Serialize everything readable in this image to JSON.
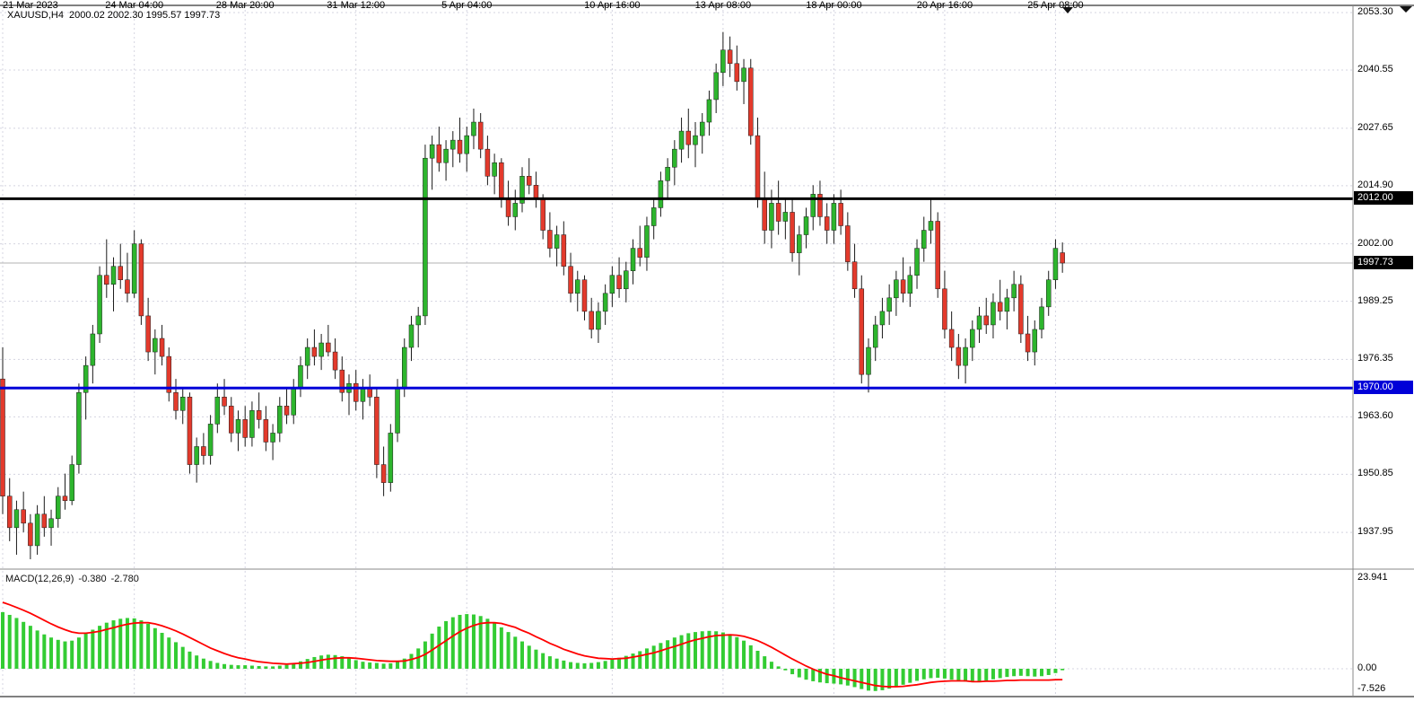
{
  "header": {
    "symbol_period": "XAUUSD,H4",
    "ohlc_values": "2000.02 2002.30 1995.57 1997.73"
  },
  "price_axis": {
    "ticks": [
      {
        "label": "2053.30",
        "value": 2053.3
      },
      {
        "label": "2040.55",
        "value": 2040.55
      },
      {
        "label": "2027.65",
        "value": 2027.65
      },
      {
        "label": "2014.90",
        "value": 2014.9
      },
      {
        "label": "2002.00",
        "value": 2002.0
      },
      {
        "label": "1989.25",
        "value": 1989.25
      },
      {
        "label": "1976.35",
        "value": 1976.35
      },
      {
        "label": "1963.60",
        "value": 1963.6
      },
      {
        "label": "1950.85",
        "value": 1950.85
      },
      {
        "label": "1937.95",
        "value": 1937.95
      }
    ],
    "current": {
      "label": "1997.73",
      "value": 1997.73,
      "badge_bg": "#000000"
    }
  },
  "hlines": [
    {
      "label": "2012.00",
      "value": 2012.0,
      "color": "#000000",
      "badge_bg": "#000000"
    },
    {
      "label": "1970.00",
      "value": 1970.0,
      "color": "#0000d8",
      "badge_bg": "#0000d8"
    }
  ],
  "time_axis": {
    "ticks": [
      {
        "label": "21 Mar 2023",
        "index": 0
      },
      {
        "label": "24 Mar 04:00",
        "index": 19
      },
      {
        "label": "28 Mar 20:00",
        "index": 35
      },
      {
        "label": "31 Mar 12:00",
        "index": 51
      },
      {
        "label": "5 Apr 04:00",
        "index": 67
      },
      {
        "label": "10 Apr 16:00",
        "index": 88
      },
      {
        "label": "13 Apr 08:00",
        "index": 104
      },
      {
        "label": "18 Apr 00:00",
        "index": 120
      },
      {
        "label": "20 Apr 16:00",
        "index": 136
      },
      {
        "label": "25 Apr 08:00",
        "index": 152
      }
    ]
  },
  "macd": {
    "label": "MACD(12,26,9)",
    "value_main": "-0.380",
    "value_signal": "-2.780",
    "axis": [
      {
        "label": "23.941",
        "value": 23.941
      },
      {
        "label": "0.00",
        "value": 0.0
      },
      {
        "label": "-7.526",
        "value": -7.526
      }
    ]
  },
  "colors": {
    "bull": "#2db52d",
    "bear": "#e33a2c",
    "wick": "#1a1a1a",
    "grid": "#d4d4e0",
    "bid_line": "#b3b3b3",
    "macd_hist": "#33cc33",
    "macd_signal": "#ff0000",
    "frame": "#000000",
    "separator": "#888888"
  },
  "chart_data": {
    "type": "candlestick",
    "symbol": "XAUUSD",
    "timeframe": "H4",
    "title": "XAUUSD,H4 2000.02 2002.30 1995.57 1997.73",
    "price_axis_range": [
      1931,
      2056
    ],
    "grid": true,
    "ohlc_current": {
      "open": 2000.02,
      "high": 2002.3,
      "low": 1995.57,
      "close": 1997.73
    },
    "horizontal_lines": [
      2012.0,
      1970.0
    ],
    "current_price": 1997.73,
    "candles": [
      [
        1972,
        1979,
        1942,
        1946
      ],
      [
        1946,
        1950,
        1936,
        1939
      ],
      [
        1939,
        1945,
        1933,
        1943
      ],
      [
        1943,
        1947,
        1938,
        1940
      ],
      [
        1940,
        1942,
        1932,
        1935
      ],
      [
        1935,
        1944,
        1933,
        1942
      ],
      [
        1942,
        1946,
        1937,
        1939
      ],
      [
        1939,
        1943,
        1935,
        1941
      ],
      [
        1941,
        1948,
        1939,
        1946
      ],
      [
        1946,
        1951,
        1943,
        1945
      ],
      [
        1945,
        1955,
        1944,
        1953
      ],
      [
        1953,
        1971,
        1951,
        1969
      ],
      [
        1969,
        1977,
        1963,
        1975
      ],
      [
        1975,
        1984,
        1971,
        1982
      ],
      [
        1982,
        1997,
        1980,
        1995
      ],
      [
        1995,
        2003,
        1990,
        1993
      ],
      [
        1993,
        1999,
        1987,
        1997
      ],
      [
        1997,
        2002,
        1992,
        1994
      ],
      [
        1994,
        2000,
        1989,
        1991
      ],
      [
        1991,
        2005,
        1990,
        2002
      ],
      [
        2002,
        2003,
        1984,
        1986
      ],
      [
        1986,
        1990,
        1976,
        1978
      ],
      [
        1978,
        1983,
        1973,
        1981
      ],
      [
        1981,
        1984,
        1975,
        1977
      ],
      [
        1977,
        1979,
        1967,
        1969
      ],
      [
        1969,
        1972,
        1963,
        1965
      ],
      [
        1965,
        1970,
        1962,
        1968
      ],
      [
        1968,
        1969,
        1951,
        1953
      ],
      [
        1953,
        1959,
        1949,
        1957
      ],
      [
        1957,
        1960,
        1953,
        1955
      ],
      [
        1955,
        1964,
        1953,
        1962
      ],
      [
        1962,
        1971,
        1960,
        1968
      ],
      [
        1968,
        1972,
        1964,
        1966
      ],
      [
        1966,
        1968,
        1958,
        1960
      ],
      [
        1960,
        1965,
        1956,
        1963
      ],
      [
        1963,
        1966,
        1957,
        1959
      ],
      [
        1959,
        1967,
        1957,
        1965
      ],
      [
        1965,
        1969,
        1961,
        1963
      ],
      [
        1963,
        1966,
        1956,
        1958
      ],
      [
        1958,
        1962,
        1954,
        1960
      ],
      [
        1960,
        1968,
        1958,
        1966
      ],
      [
        1966,
        1970,
        1962,
        1964
      ],
      [
        1964,
        1972,
        1962,
        1970
      ],
      [
        1970,
        1977,
        1968,
        1975
      ],
      [
        1975,
        1981,
        1972,
        1979
      ],
      [
        1979,
        1983,
        1975,
        1977
      ],
      [
        1977,
        1982,
        1974,
        1980
      ],
      [
        1980,
        1984,
        1977,
        1978
      ],
      [
        1978,
        1981,
        1972,
        1974
      ],
      [
        1974,
        1977,
        1967,
        1969
      ],
      [
        1969,
        1973,
        1964,
        1971
      ],
      [
        1971,
        1974,
        1965,
        1967
      ],
      [
        1967,
        1972,
        1963,
        1970
      ],
      [
        1970,
        1973,
        1966,
        1968
      ],
      [
        1968,
        1970,
        1950,
        1953
      ],
      [
        1953,
        1957,
        1946,
        1949
      ],
      [
        1949,
        1962,
        1947,
        1960
      ],
      [
        1960,
        1972,
        1958,
        1970
      ],
      [
        1970,
        1981,
        1968,
        1979
      ],
      [
        1979,
        1986,
        1976,
        1984
      ],
      [
        1984,
        1988,
        1979,
        1986
      ],
      [
        1986,
        2024,
        1984,
        2021
      ],
      [
        2021,
        2026,
        2014,
        2024
      ],
      [
        2024,
        2028,
        2018,
        2020
      ],
      [
        2020,
        2025,
        2016,
        2023
      ],
      [
        2023,
        2027,
        2019,
        2025
      ],
      [
        2025,
        2030,
        2020,
        2022
      ],
      [
        2022,
        2028,
        2018,
        2026
      ],
      [
        2026,
        2032,
        2023,
        2029
      ],
      [
        2029,
        2031,
        2021,
        2023
      ],
      [
        2023,
        2026,
        2015,
        2017
      ],
      [
        2017,
        2022,
        2013,
        2020
      ],
      [
        2020,
        2021,
        2010,
        2012
      ],
      [
        2012,
        2016,
        2006,
        2008
      ],
      [
        2008,
        2014,
        2005,
        2011
      ],
      [
        2011,
        2019,
        2009,
        2017
      ],
      [
        2017,
        2021,
        2013,
        2015
      ],
      [
        2015,
        2018,
        2010,
        2012
      ],
      [
        2012,
        2013,
        2003,
        2005
      ],
      [
        2005,
        2009,
        1999,
        2001
      ],
      [
        2001,
        2006,
        1997,
        2004
      ],
      [
        2004,
        2007,
        1995,
        1997
      ],
      [
        1997,
        2000,
        1989,
        1991
      ],
      [
        1991,
        1996,
        1987,
        1994
      ],
      [
        1994,
        1995,
        1985,
        1987
      ],
      [
        1987,
        1990,
        1981,
        1983
      ],
      [
        1983,
        1989,
        1980,
        1987
      ],
      [
        1987,
        1993,
        1984,
        1991
      ],
      [
        1991,
        1997,
        1988,
        1995
      ],
      [
        1995,
        1999,
        1990,
        1992
      ],
      [
        1992,
        1998,
        1989,
        1996
      ],
      [
        1996,
        2003,
        1993,
        2001
      ],
      [
        2001,
        2006,
        1997,
        1999
      ],
      [
        1999,
        2008,
        1996,
        2006
      ],
      [
        2006,
        2012,
        2003,
        2010
      ],
      [
        2010,
        2018,
        2008,
        2016
      ],
      [
        2016,
        2021,
        2012,
        2019
      ],
      [
        2019,
        2025,
        2015,
        2023
      ],
      [
        2023,
        2030,
        2020,
        2027
      ],
      [
        2027,
        2032,
        2021,
        2024
      ],
      [
        2024,
        2029,
        2019,
        2026
      ],
      [
        2026,
        2031,
        2022,
        2029
      ],
      [
        2029,
        2036,
        2026,
        2034
      ],
      [
        2034,
        2042,
        2031,
        2040
      ],
      [
        2040,
        2049,
        2037,
        2045
      ],
      [
        2045,
        2048,
        2039,
        2042
      ],
      [
        2042,
        2046,
        2036,
        2038
      ],
      [
        2038,
        2043,
        2033,
        2041
      ],
      [
        2041,
        2043,
        2024,
        2026
      ],
      [
        2026,
        2030,
        2010,
        2012
      ],
      [
        2012,
        2018,
        2002,
        2005
      ],
      [
        2005,
        2014,
        2001,
        2011
      ],
      [
        2011,
        2016,
        2004,
        2007
      ],
      [
        2007,
        2012,
        2003,
        2009
      ],
      [
        2009,
        2012,
        1998,
        2000
      ],
      [
        2000,
        2006,
        1995,
        2004
      ],
      [
        2004,
        2010,
        2001,
        2008
      ],
      [
        2008,
        2015,
        2005,
        2013
      ],
      [
        2013,
        2016,
        2006,
        2008
      ],
      [
        2008,
        2011,
        2002,
        2005
      ],
      [
        2005,
        2013,
        2002,
        2011
      ],
      [
        2011,
        2014,
        2004,
        2006
      ],
      [
        2006,
        2009,
        1996,
        1998
      ],
      [
        1998,
        2002,
        1990,
        1992
      ],
      [
        1992,
        1995,
        1971,
        1973
      ],
      [
        1973,
        1981,
        1969,
        1979
      ],
      [
        1979,
        1986,
        1976,
        1984
      ],
      [
        1984,
        1990,
        1981,
        1987
      ],
      [
        1987,
        1993,
        1984,
        1990
      ],
      [
        1990,
        1996,
        1986,
        1994
      ],
      [
        1994,
        1999,
        1989,
        1991
      ],
      [
        1991,
        1997,
        1988,
        1995
      ],
      [
        1995,
        2003,
        1992,
        2001
      ],
      [
        2001,
        2008,
        1998,
        2005
      ],
      [
        2005,
        2012,
        2002,
        2007
      ],
      [
        2007,
        2009,
        1990,
        1992
      ],
      [
        1992,
        1996,
        1981,
        1983
      ],
      [
        1983,
        1987,
        1976,
        1979
      ],
      [
        1979,
        1982,
        1972,
        1975
      ],
      [
        1975,
        1981,
        1971,
        1979
      ],
      [
        1979,
        1985,
        1976,
        1983
      ],
      [
        1983,
        1988,
        1980,
        1986
      ],
      [
        1986,
        1990,
        1982,
        1984
      ],
      [
        1984,
        1991,
        1981,
        1989
      ],
      [
        1989,
        1994,
        1985,
        1987
      ],
      [
        1987,
        1992,
        1983,
        1990
      ],
      [
        1990,
        1996,
        1987,
        1993
      ],
      [
        1993,
        1995,
        1980,
        1982
      ],
      [
        1982,
        1986,
        1976,
        1978
      ],
      [
        1978,
        1985,
        1975,
        1983
      ],
      [
        1983,
        1990,
        1981,
        1988
      ],
      [
        1988,
        1996,
        1986,
        1994
      ],
      [
        1994,
        2003,
        1992,
        2001
      ],
      [
        2000.02,
        2002.3,
        1995.57,
        1997.73
      ]
    ],
    "indicator": {
      "type": "MACD",
      "params": [
        12,
        26,
        9
      ],
      "axis_range": [
        -7.526,
        23.941
      ],
      "last_values": {
        "macd": -0.38,
        "signal": -2.78
      },
      "histogram": [
        14.5,
        13.8,
        13.0,
        12.0,
        11.0,
        9.8,
        8.8,
        8.0,
        7.4,
        7.0,
        7.2,
        8.0,
        9.0,
        10.0,
        11.0,
        11.8,
        12.4,
        12.8,
        13.0,
        12.9,
        12.4,
        11.5,
        10.4,
        9.2,
        8.0,
        6.8,
        5.6,
        4.4,
        3.4,
        2.6,
        2.0,
        1.5,
        1.2,
        1.0,
        0.9,
        0.9,
        0.8,
        0.7,
        0.6,
        0.6,
        0.8,
        1.0,
        1.4,
        1.9,
        2.5,
        3.0,
        3.4,
        3.6,
        3.5,
        3.2,
        2.7,
        2.2,
        1.8,
        1.6,
        1.5,
        1.3,
        1.4,
        1.8,
        2.6,
        3.8,
        5.2,
        7.0,
        9.0,
        10.8,
        12.2,
        13.2,
        13.8,
        14.0,
        13.9,
        13.5,
        12.8,
        11.8,
        10.6,
        9.4,
        8.2,
        7.0,
        5.9,
        4.9,
        4.0,
        3.2,
        2.6,
        2.1,
        1.7,
        1.5,
        1.4,
        1.5,
        1.7,
        2.0,
        2.4,
        2.8,
        3.3,
        3.9,
        4.5,
        5.2,
        5.9,
        6.6,
        7.3,
        8.0,
        8.6,
        9.1,
        9.4,
        9.6,
        9.7,
        9.6,
        9.3,
        8.8,
        8.1,
        7.2,
        6.0,
        4.6,
        3.2,
        1.8,
        0.6,
        -0.4,
        -1.4,
        -2.2,
        -2.8,
        -3.2,
        -3.5,
        -3.7,
        -3.8,
        -4.0,
        -4.3,
        -4.7,
        -5.2,
        -5.6,
        -5.7,
        -5.5,
        -5.1,
        -4.6,
        -4.1,
        -3.6,
        -3.1,
        -2.7,
        -2.4,
        -2.3,
        -2.5,
        -2.8,
        -3.1,
        -3.3,
        -3.3,
        -3.2,
        -3.0,
        -2.7,
        -2.4,
        -2.1,
        -1.9,
        -1.8,
        -1.9,
        -2.0,
        -1.9,
        -1.6,
        -1.1,
        -0.38
      ],
      "signal": [
        17.0,
        16.4,
        15.7,
        15.0,
        14.2,
        13.3,
        12.4,
        11.5,
        10.7,
        10.0,
        9.4,
        9.1,
        9.1,
        9.3,
        9.6,
        10.1,
        10.5,
        11.0,
        11.4,
        11.7,
        11.8,
        11.8,
        11.5,
        11.0,
        10.4,
        9.7,
        8.9,
        8.0,
        7.1,
        6.2,
        5.3,
        4.6,
        3.9,
        3.3,
        2.8,
        2.5,
        2.1,
        1.8,
        1.6,
        1.4,
        1.3,
        1.2,
        1.3,
        1.4,
        1.6,
        1.9,
        2.2,
        2.5,
        2.7,
        2.8,
        2.8,
        2.7,
        2.5,
        2.3,
        2.1,
        2.0,
        1.9,
        1.9,
        2.0,
        2.4,
        2.9,
        3.7,
        4.8,
        6.0,
        7.2,
        8.4,
        9.5,
        10.4,
        11.1,
        11.6,
        11.8,
        11.8,
        11.6,
        11.1,
        10.6,
        9.8,
        9.1,
        8.2,
        7.4,
        6.5,
        5.8,
        5.0,
        4.4,
        3.8,
        3.3,
        3.0,
        2.7,
        2.6,
        2.5,
        2.6,
        2.7,
        3.0,
        3.3,
        3.7,
        4.1,
        4.6,
        5.2,
        5.7,
        6.3,
        6.9,
        7.4,
        7.8,
        8.2,
        8.5,
        8.6,
        8.7,
        8.6,
        8.3,
        7.8,
        7.2,
        6.4,
        5.5,
        4.5,
        3.5,
        2.5,
        1.6,
        0.7,
        -0.1,
        -0.8,
        -1.4,
        -1.8,
        -2.3,
        -2.7,
        -3.1,
        -3.5,
        -3.9,
        -4.3,
        -4.5,
        -4.6,
        -4.6,
        -4.5,
        -4.3,
        -4.1,
        -3.8,
        -3.5,
        -3.3,
        -3.2,
        -3.1,
        -3.1,
        -3.1,
        -3.3,
        -3.3,
        -3.2,
        -3.2,
        -3.1,
        -3.0,
        -3.0,
        -2.9,
        -2.9,
        -2.9,
        -2.9,
        -2.9,
        -2.8,
        -2.78
      ]
    }
  }
}
